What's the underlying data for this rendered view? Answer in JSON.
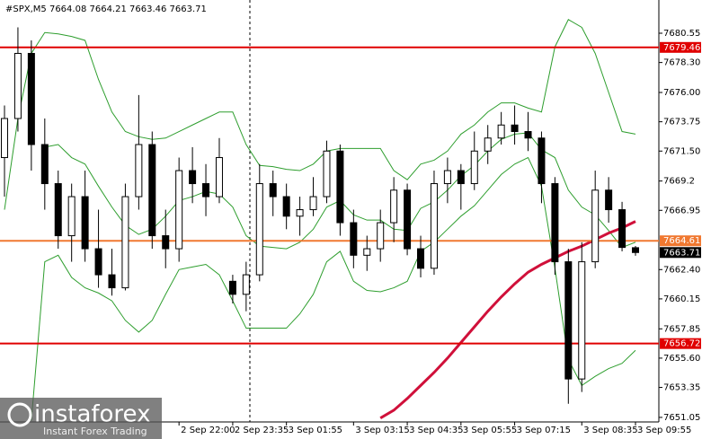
{
  "chart_data": {
    "type": "candlestick",
    "title": "#SPX,M5  7664.08 7664.21 7663.46 7663.71",
    "categories": [
      null,
      null,
      null,
      null,
      null,
      null,
      null,
      null,
      null,
      null,
      null,
      null,
      null,
      "2 Sep 22:00",
      null,
      null,
      null,
      "2 Sep 23:35",
      null,
      null,
      null,
      "3 Sep 01:55",
      null,
      null,
      null,
      null,
      "3 Sep 03:15",
      null,
      null,
      null,
      "3 Sep 04:35",
      null,
      null,
      null,
      "3 Sep 05:55",
      null,
      null,
      null,
      "3 Sep 07:15",
      null,
      null,
      null,
      null,
      "3 Sep 08:35",
      null,
      null,
      null,
      "3 Sep 09:55"
    ],
    "open": [
      7671,
      7674,
      7679,
      7672,
      7669,
      7665,
      7668,
      7664,
      7662,
      7661,
      7668,
      7672,
      7665,
      7664,
      7670,
      7669,
      7668,
      7661.5,
      7660.5,
      7662,
      7669,
      7668,
      7666.5,
      7667,
      7668,
      7671.5,
      7666,
      7663.5,
      7664,
      7666,
      7668.5,
      7664,
      7662.5,
      7669,
      7670,
      7669,
      7671.5,
      7672.5,
      7673.5,
      7673,
      7672.5,
      7669,
      7663,
      7654,
      7663,
      7668.5,
      7667,
      7664.08
    ],
    "high": [
      7675,
      7681,
      7680,
      7674,
      7670,
      7669,
      7670,
      7667,
      7664,
      7669,
      7675.8,
      7673,
      7667,
      7671,
      7671.8,
      7670.5,
      7672.5,
      7662,
      7663,
      7670.5,
      7670,
      7669,
      7668,
      7669.5,
      7672.3,
      7672,
      7667,
      7665,
      7667,
      7669.5,
      7669,
      7665,
      7670,
      7671,
      7670.5,
      7673,
      7673.5,
      7674.5,
      7675,
      7674.5,
      7673,
      7669.5,
      7664,
      7664.5,
      7670,
      7669.5,
      7667.6,
      7664.21
    ],
    "low": [
      7668,
      7673,
      7670,
      7667,
      7664,
      7663,
      7663,
      7661,
      7660.4,
      7660.8,
      7667,
      7664,
      7662.5,
      7663,
      7667.5,
      7666.5,
      7667.5,
      7659.8,
      7659.2,
      7661.5,
      7666.5,
      7665.5,
      7665,
      7666.5,
      7667.5,
      7665,
      7662.5,
      7662.3,
      7663,
      7664.5,
      7663.5,
      7661.8,
      7662,
      7667.5,
      7667,
      7668.5,
      7670.5,
      7672,
      7672,
      7671.5,
      7667.5,
      7662,
      7652.1,
      7653,
      7662.5,
      7666,
      7663.8,
      7663.46
    ],
    "close": [
      7674,
      7679,
      7672,
      7669,
      7665,
      7668,
      7664,
      7662,
      7661,
      7668,
      7672,
      7665,
      7664,
      7670,
      7669,
      7668,
      7671,
      7660.5,
      7662,
      7669,
      7668,
      7666.5,
      7667,
      7668,
      7671.5,
      7666,
      7663.5,
      7664,
      7666,
      7668.5,
      7664,
      7662.5,
      7669,
      7670,
      7669,
      7671.5,
      7672.5,
      7673.5,
      7673,
      7672.5,
      7669,
      7663,
      7654,
      7663,
      7668.5,
      7667,
      7664.1,
      7663.71
    ],
    "up_color": "#ffffff",
    "down_color": "#000000",
    "series": [
      {
        "color": "#2e9e2e",
        "values": [
          7667,
          7674,
          7679,
          7680.6,
          7680.5,
          7680.3,
          7680,
          7677,
          7674.5,
          7673,
          7672.6,
          7672.4,
          7672.5,
          7673,
          7673.5,
          7674,
          7674.5,
          7674.5,
          7672,
          7670.4,
          7670.3,
          7670.1,
          7670,
          7670.5,
          7671.5,
          7671.7,
          7671.7,
          7671.7,
          7671.7,
          7670,
          7669.3,
          7670.5,
          7670.8,
          7671.5,
          7672.8,
          7673.5,
          7674.5,
          7675.2,
          7675.2,
          7674.8,
          7674.5,
          7679.5,
          7681.6,
          7681,
          7679,
          7676,
          7673,
          7672.8
        ]
      },
      {
        "color": "#2e9e2e",
        "values": [
          null,
          null,
          null,
          7671.8,
          7672,
          7671,
          7670.5,
          7668.8,
          7667.2,
          7665.8,
          7665.1,
          7665.5,
          7666.5,
          7667.7,
          7668,
          7668.4,
          7668.2,
          7667.2,
          7665,
          7664.2,
          7664.1,
          7664,
          7664.5,
          7665.5,
          7667.2,
          7667.7,
          7666.6,
          7666.2,
          7666.2,
          7665.5,
          7665.4,
          7667.1,
          7667.6,
          7668.5,
          7669.6,
          7670.4,
          7671.5,
          7672.4,
          7672.8,
          7672.9,
          7671.6,
          7671,
          7668.5,
          7667.2,
          7666.6,
          7665.4,
          7664.1,
          7664.5
        ]
      },
      {
        "color": "#2e9e2e",
        "values": [
          null,
          null,
          7650.8,
          7663,
          7663.5,
          7661.8,
          7661,
          7660.6,
          7660,
          7658.5,
          7657.6,
          7658.5,
          7660.5,
          7662.4,
          7662.6,
          7662.8,
          7662,
          7660,
          7657.9,
          7657.9,
          7657.9,
          7657.9,
          7659,
          7660.5,
          7663,
          7663.8,
          7661.5,
          7660.8,
          7660.7,
          7661,
          7661.5,
          7663.8,
          7664.5,
          7665.5,
          7666.5,
          7667.3,
          7668.5,
          7669.7,
          7670.5,
          7671,
          7668.8,
          7662.5,
          7655.5,
          7653.5,
          7654.2,
          7654.8,
          7655.2,
          7656.2
        ]
      },
      {
        "color": "#d0103a",
        "values": [
          null,
          null,
          null,
          null,
          null,
          null,
          null,
          null,
          null,
          null,
          null,
          null,
          null,
          null,
          null,
          null,
          null,
          null,
          null,
          null,
          null,
          null,
          null,
          null,
          null,
          null,
          null,
          null,
          7651,
          7651.6,
          7652.5,
          7653.5,
          7654.5,
          7655.6,
          7656.8,
          7658,
          7659.2,
          7660.3,
          7661.3,
          7662.2,
          7662.8,
          7663.3,
          7663.8,
          7664.2,
          7664.7,
          7665.2,
          7665.6,
          7666.1
        ]
      }
    ],
    "levels": [
      {
        "value": 7679.46,
        "color": "#e00000"
      },
      {
        "value": 7664.61,
        "color": "#f07830"
      },
      {
        "value": 7656.72,
        "color": "#e00000"
      },
      {
        "value": 7663.71,
        "color": "#000000"
      }
    ],
    "ylim": [
      7650.7,
      7683.1
    ],
    "yticks": [
      7680.55,
      {
        "value": 7678.3,
        "label": "7678.30"
      },
      {
        "value": 7676.0,
        "label": "7676.00"
      },
      7673.75,
      {
        "value": 7671.5,
        "label": "7671.50"
      },
      7669.2,
      7666.95,
      {
        "value": 7662.4,
        "label": "7662.40"
      },
      7660.15,
      7657.85,
      {
        "value": 7655.6,
        "label": "7655.60"
      },
      7653.35,
      7651.05
    ]
  },
  "watermark": {
    "brand": "instaforex",
    "tagline": "Instant Forex Trading"
  }
}
